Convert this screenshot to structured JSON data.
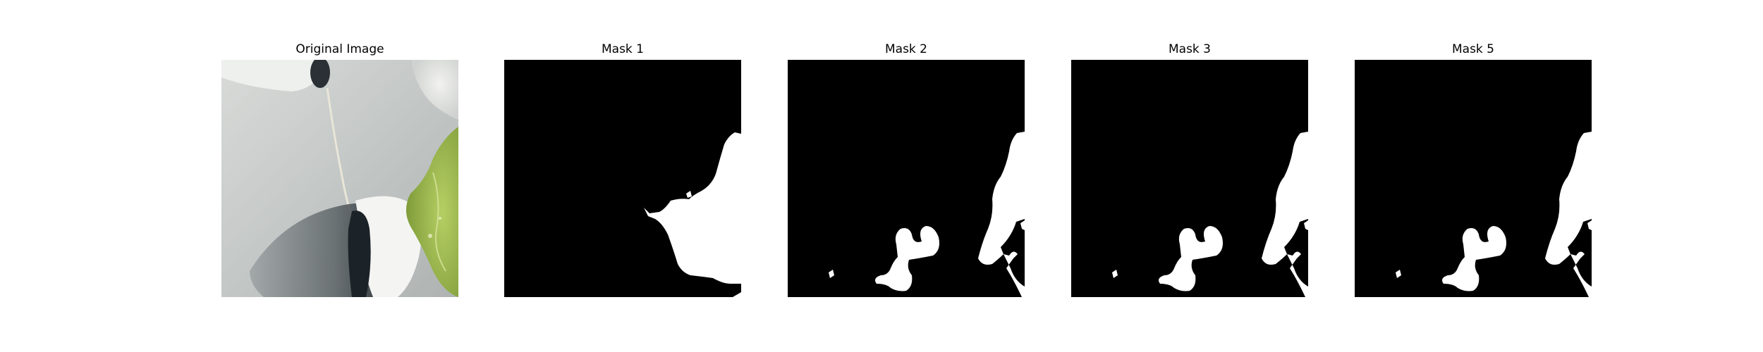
{
  "figure": {
    "panels": [
      {
        "title": "Original Image"
      },
      {
        "title": "Mask 1"
      },
      {
        "title": "Mask 2"
      },
      {
        "title": "Mask 3"
      },
      {
        "title": "Mask 5"
      }
    ]
  },
  "colors": {
    "background": "#ffffff",
    "mask_background": "#000000",
    "mask_foreground": "#ffffff",
    "photo_surface": "#c9cccb",
    "photo_leaf": "#9ab84a",
    "photo_shadow": "#1c2228"
  }
}
